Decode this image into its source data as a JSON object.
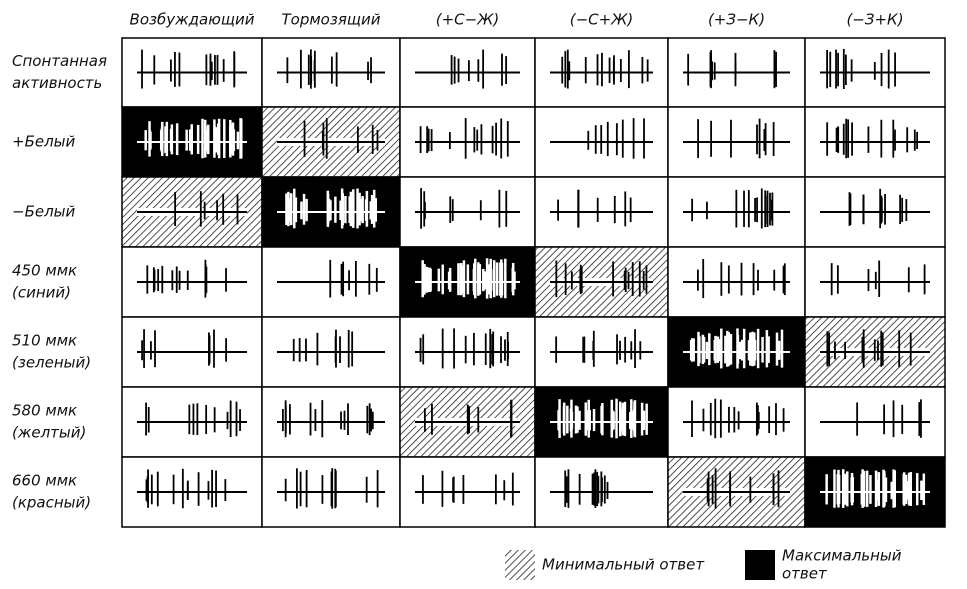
{
  "columns": [
    "Возбуждающий",
    "Тормозящий",
    "(+С−Ж)",
    "(−С+Ж)",
    "(+З−К)",
    "(−З+К)"
  ],
  "rows": [
    {
      "label": [
        "Спонтанная",
        "активность"
      ],
      "cells": [
        "none",
        "none",
        "none",
        "none",
        "none",
        "none"
      ]
    },
    {
      "label": [
        "+Белый"
      ],
      "cells": [
        "solid",
        "hatched",
        "none",
        "none",
        "none",
        "none"
      ]
    },
    {
      "label": [
        "−Белый"
      ],
      "cells": [
        "hatched",
        "solid",
        "none",
        "none",
        "none",
        "none"
      ]
    },
    {
      "label": [
        "450 ммк",
        "(синий)"
      ],
      "cells": [
        "none",
        "none",
        "solid",
        "hatched",
        "none",
        "none"
      ]
    },
    {
      "label": [
        "510 ммк",
        "(зеленый)"
      ],
      "cells": [
        "none",
        "none",
        "none",
        "none",
        "solid",
        "hatched"
      ]
    },
    {
      "label": [
        "580 ммк",
        "(желтый)"
      ],
      "cells": [
        "none",
        "none",
        "hatched",
        "solid",
        "none",
        "none"
      ]
    },
    {
      "label": [
        "660 ммк",
        "(красный)"
      ],
      "cells": [
        "none",
        "none",
        "none",
        "none",
        "hatched",
        "solid"
      ]
    }
  ],
  "legend": [
    {
      "shading": "hatched",
      "lines": [
        "Минимальный ответ"
      ]
    },
    {
      "shading": "solid",
      "lines": [
        "Максимальный",
        "ответ"
      ]
    }
  ]
}
